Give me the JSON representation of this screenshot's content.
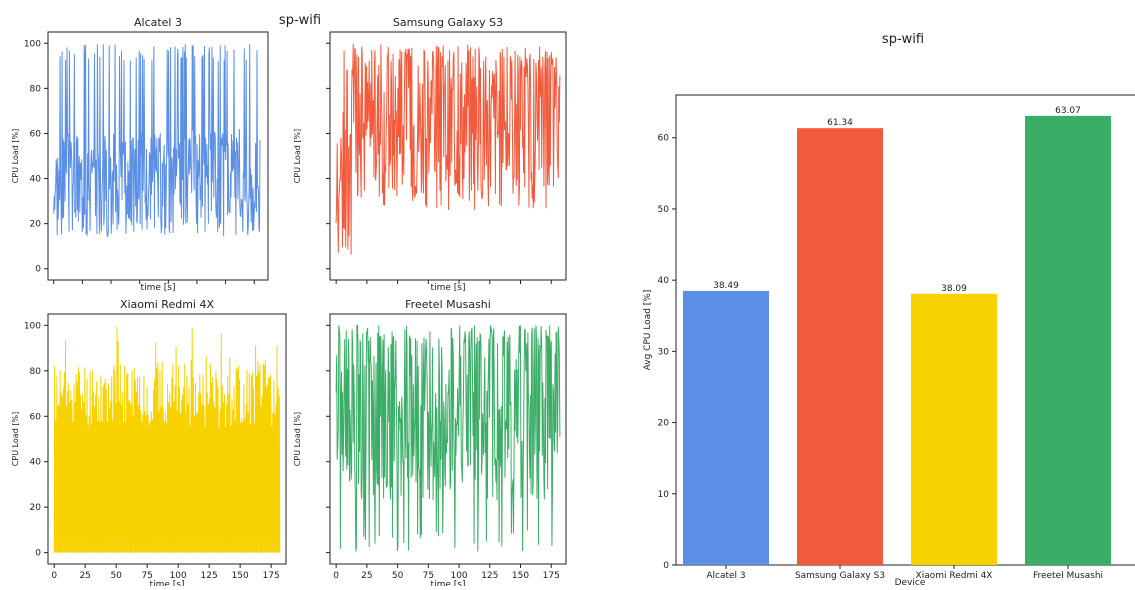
{
  "colors": {
    "alcatel": "#5b8fe6",
    "samsung": "#f25a3c",
    "xiaomi": "#f7d200",
    "freetel": "#3aad66",
    "axis": "#222222"
  },
  "chart_data": [
    {
      "type": "line",
      "title": "sp-wifi",
      "layout": "2x2 grid of CPU load traces",
      "xlabel": "time [s]",
      "ylabel": "CPU Load [%]",
      "xlim": [
        -5,
        187
      ],
      "ylim": [
        -5,
        105
      ],
      "xticks": [
        0,
        25,
        50,
        75,
        100,
        125,
        150,
        175
      ],
      "yticks": [
        0,
        20,
        40,
        60,
        80,
        100
      ],
      "series": [
        {
          "name": "Alcatel 3",
          "color_key": "alcatel",
          "base": 38,
          "spread": 24,
          "spike_max": 100,
          "x_start": 0,
          "x_end": 180,
          "seed": 3
        },
        {
          "name": "Samsung Galaxy S3",
          "color_key": "samsung",
          "base": 62,
          "spread": 36,
          "spike_max": 100,
          "x_start": 0,
          "x_end": 182,
          "seed": 7
        },
        {
          "name": "Xiaomi Redmi 4X",
          "color_key": "xiaomi",
          "base": 38,
          "spread": 40,
          "spike_max": 100,
          "x_start": 0,
          "x_end": 182,
          "seed": 11
        },
        {
          "name": "Freetel Musashi",
          "color_key": "freetel",
          "base": 63,
          "spread": 40,
          "spike_max": 100,
          "x_start": 0,
          "x_end": 182,
          "seed": 19
        }
      ]
    },
    {
      "type": "bar",
      "title": "sp-wifi",
      "xlabel": "Device",
      "ylabel": "Avg CPU Load [%]",
      "ylim": [
        0,
        66
      ],
      "yticks": [
        0,
        10,
        20,
        30,
        40,
        50,
        60
      ],
      "categories": [
        "Alcatel 3",
        "Samsung Galaxy S3",
        "Xiaomi Redmi 4X",
        "Freetel Musashi"
      ],
      "values": [
        38.49,
        61.34,
        38.09,
        63.07
      ],
      "value_labels": [
        "38.49",
        "61.34",
        "38.09",
        "63.07"
      ],
      "color_keys": [
        "alcatel",
        "samsung",
        "xiaomi",
        "freetel"
      ]
    }
  ]
}
